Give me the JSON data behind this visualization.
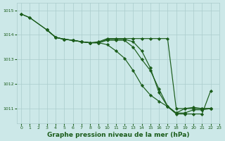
{
  "background_color": "#cce8e8",
  "grid_color": "#aacccc",
  "line_color": "#1a5c1a",
  "marker_color": "#1a5c1a",
  "xlabel": "Graphe pression niveau de la mer (hPa)",
  "xlabel_fontsize": 6.5,
  "xlim": [
    -0.5,
    23
  ],
  "ylim": [
    1010.4,
    1015.3
  ],
  "yticks": [
    1011,
    1012,
    1013,
    1014,
    1015
  ],
  "xticks": [
    0,
    1,
    2,
    3,
    4,
    5,
    6,
    7,
    8,
    9,
    10,
    11,
    12,
    13,
    14,
    15,
    16,
    17,
    18,
    19,
    20,
    21,
    22,
    23
  ],
  "series": [
    {
      "x": [
        0,
        1,
        3,
        4,
        5,
        6,
        7,
        8,
        9,
        10,
        11,
        12,
        13,
        14,
        15,
        16,
        17,
        18,
        19,
        20,
        21,
        22
      ],
      "y": [
        1014.85,
        1014.7,
        1014.2,
        1013.9,
        1013.82,
        1013.78,
        1013.72,
        1013.68,
        1013.68,
        1013.78,
        1013.78,
        1013.78,
        1013.5,
        1013.0,
        1012.55,
        1011.8,
        1011.1,
        1010.82,
        1011.0,
        1011.05,
        1011.0,
        1011.0
      ]
    },
    {
      "x": [
        0,
        1,
        3,
        4,
        5,
        6,
        7,
        8,
        9,
        10,
        11,
        12,
        13,
        14,
        15,
        16,
        17,
        18,
        19,
        20,
        21,
        22
      ],
      "y": [
        1014.85,
        1014.7,
        1014.2,
        1013.9,
        1013.82,
        1013.78,
        1013.72,
        1013.68,
        1013.68,
        1013.6,
        1013.35,
        1013.05,
        1012.55,
        1011.95,
        1011.55,
        1011.3,
        1011.08,
        1010.78,
        1010.78,
        1010.78,
        1010.78,
        1011.72
      ]
    },
    {
      "x": [
        3,
        4,
        5,
        6,
        7,
        8,
        9,
        10,
        11,
        12,
        13,
        14,
        15,
        16,
        17,
        18,
        19,
        20,
        21,
        22
      ],
      "y": [
        1014.2,
        1013.9,
        1013.82,
        1013.78,
        1013.72,
        1013.68,
        1013.72,
        1013.85,
        1013.85,
        1013.85,
        1013.85,
        1013.85,
        1013.85,
        1013.85,
        1013.85,
        1011.0,
        1011.0,
        1011.0,
        1011.0,
        1011.0
      ]
    },
    {
      "x": [
        3,
        4,
        5,
        6,
        7,
        8,
        9,
        10,
        11,
        12,
        13,
        14,
        15,
        16,
        17,
        18,
        19,
        20,
        21,
        22
      ],
      "y": [
        1014.2,
        1013.9,
        1013.82,
        1013.78,
        1013.72,
        1013.68,
        1013.68,
        1013.82,
        1013.82,
        1013.82,
        1013.72,
        1013.35,
        1012.65,
        1011.65,
        1011.08,
        1010.82,
        1010.82,
        1010.95,
        1010.95,
        1011.0
      ]
    }
  ]
}
